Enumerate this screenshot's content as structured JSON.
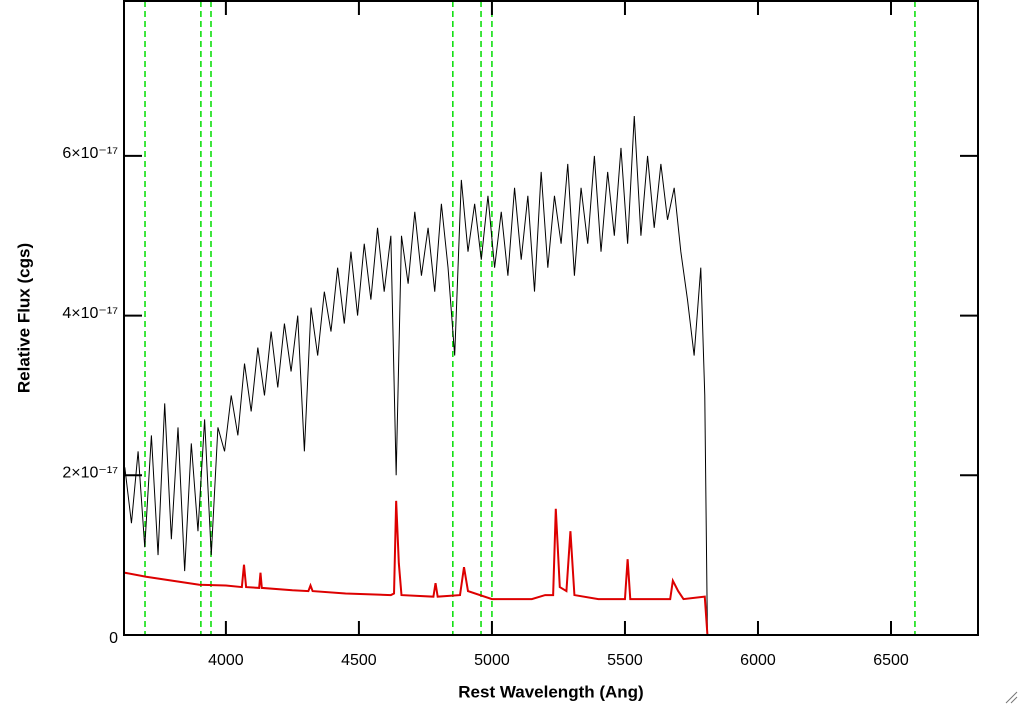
{
  "chart_data": {
    "type": "line",
    "x_label": "Rest Wavelength (Ang)",
    "y_label": "Relative Flux (cgs)",
    "xlim": [
      3617,
      6827
    ],
    "ylim": [
      0,
      7.94e-17
    ],
    "xticks": [
      4000,
      4500,
      5000,
      5500,
      6000,
      6500
    ],
    "yticks": [
      0,
      {
        "value": 2e-17,
        "label": "2×10⁻¹⁷"
      },
      {
        "value": 4e-17,
        "label": "4×10⁻¹⁷"
      },
      {
        "value": 6e-17,
        "label": "6×10⁻¹⁷"
      }
    ],
    "vlines": {
      "color": "#00dd00",
      "values": [
        3696,
        3906,
        3944,
        4853,
        4959,
        5000,
        6590
      ]
    },
    "series": [
      {
        "color": "#000000",
        "x": [
          3620,
          3645,
          3670,
          3695,
          3720,
          3745,
          3770,
          3795,
          3820,
          3845,
          3870,
          3895,
          3920,
          3945,
          3970,
          3995,
          4020,
          4045,
          4070,
          4095,
          4120,
          4145,
          4170,
          4195,
          4220,
          4245,
          4270,
          4295,
          4320,
          4345,
          4370,
          4395,
          4420,
          4445,
          4470,
          4495,
          4520,
          4545,
          4570,
          4595,
          4620,
          4640,
          4660,
          4685,
          4710,
          4735,
          4760,
          4785,
          4810,
          4835,
          4860,
          4885,
          4910,
          4935,
          4960,
          4985,
          5010,
          5035,
          5060,
          5085,
          5110,
          5135,
          5160,
          5185,
          5210,
          5235,
          5260,
          5285,
          5310,
          5335,
          5360,
          5385,
          5410,
          5435,
          5460,
          5485,
          5510,
          5535,
          5560,
          5585,
          5610,
          5635,
          5660,
          5685,
          5710,
          5735,
          5760,
          5785,
          5800,
          5810
        ],
        "values": [
          2.1e-17,
          1.4e-17,
          2.3e-17,
          1.1e-17,
          2.5e-17,
          1e-17,
          2.9e-17,
          1.2e-17,
          2.6e-17,
          8e-18,
          2.4e-17,
          1.3e-17,
          2.7e-17,
          1e-17,
          2.6e-17,
          2.3e-17,
          3e-17,
          2.5e-17,
          3.4e-17,
          2.8e-17,
          3.6e-17,
          3e-17,
          3.8e-17,
          3.1e-17,
          3.9e-17,
          3.3e-17,
          4e-17,
          2.3e-17,
          4.1e-17,
          3.5e-17,
          4.3e-17,
          3.8e-17,
          4.6e-17,
          3.9e-17,
          4.8e-17,
          4e-17,
          4.9e-17,
          4.2e-17,
          5.1e-17,
          4.3e-17,
          5e-17,
          2e-17,
          5e-17,
          4.4e-17,
          5.3e-17,
          4.5e-17,
          5.1e-17,
          4.3e-17,
          5.4e-17,
          4.6e-17,
          3.5e-17,
          5.7e-17,
          4.8e-17,
          5.4e-17,
          4.7e-17,
          5.5e-17,
          4.6e-17,
          5.3e-17,
          4.5e-17,
          5.6e-17,
          4.7e-17,
          5.5e-17,
          4.3e-17,
          5.8e-17,
          4.6e-17,
          5.5e-17,
          4.9e-17,
          5.9e-17,
          4.5e-17,
          5.6e-17,
          4.9e-17,
          6e-17,
          4.8e-17,
          5.8e-17,
          5e-17,
          6.1e-17,
          4.9e-17,
          6.5e-17,
          5e-17,
          6e-17,
          5.1e-17,
          5.9e-17,
          5.2e-17,
          5.6e-17,
          4.8e-17,
          4.2e-17,
          3.5e-17,
          4.6e-17,
          3e-17,
          0
        ]
      },
      {
        "color": "#dd0000",
        "x": [
          3620,
          3700,
          3800,
          3900,
          4000,
          4060,
          4068,
          4076,
          4125,
          4130,
          4135,
          4250,
          4310,
          4318,
          4326,
          4450,
          4620,
          4632,
          4640,
          4650,
          4660,
          4780,
          4788,
          4796,
          4880,
          4895,
          4910,
          5000,
          5150,
          5200,
          5230,
          5240,
          5255,
          5280,
          5295,
          5310,
          5400,
          5500,
          5510,
          5520,
          5670,
          5680,
          5700,
          5720,
          5800,
          5810,
          6827
        ],
        "values": [
          7.8e-18,
          7.3e-18,
          6.8e-18,
          6.3e-18,
          6.2e-18,
          6e-18,
          8.8e-18,
          6e-18,
          5.9e-18,
          7.8e-18,
          5.9e-18,
          5.6e-18,
          5.5e-18,
          6.2e-18,
          5.5e-18,
          5.2e-18,
          5e-18,
          5.2e-18,
          1.68e-17,
          9e-18,
          5e-18,
          4.8e-18,
          6.5e-18,
          4.8e-18,
          5e-18,
          8.5e-18,
          5.5e-18,
          4.5e-18,
          4.5e-18,
          5e-18,
          5e-18,
          1.58e-17,
          6e-18,
          5.5e-18,
          1.3e-17,
          5e-18,
          4.5e-18,
          4.5e-18,
          9.5e-18,
          4.5e-18,
          4.5e-18,
          6.8e-18,
          5.5e-18,
          4.5e-18,
          4.8e-18,
          0,
          0
        ]
      }
    ]
  }
}
